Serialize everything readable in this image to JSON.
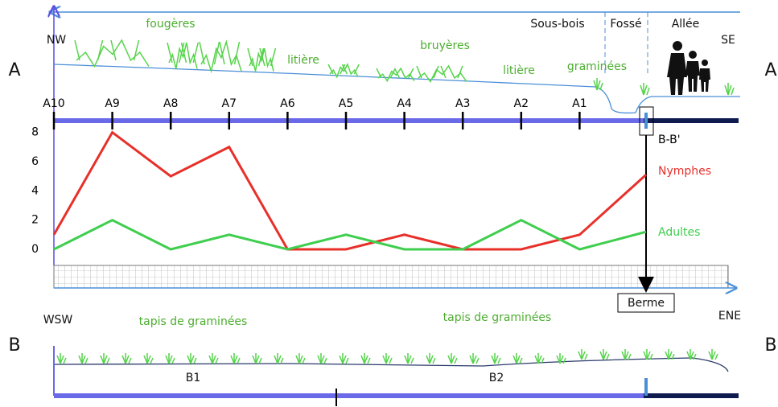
{
  "chart_data": {
    "type": "line",
    "categories": [
      "A10",
      "A9",
      "A8",
      "A7",
      "A6",
      "A5",
      "A4",
      "A3",
      "A2",
      "A1",
      "B-B'"
    ],
    "series": [
      {
        "name": "Nymphes",
        "color": "#e8302a",
        "values": [
          1,
          8,
          5,
          7,
          0,
          0,
          1,
          0,
          0,
          1,
          5.1
        ]
      },
      {
        "name": "Adultes",
        "color": "#3fce4e",
        "values": [
          0,
          2,
          0,
          1,
          0,
          1,
          0,
          0,
          2,
          0,
          1.2
        ]
      }
    ],
    "ylim": [
      -1.1,
      8.8
    ],
    "yticks": [
      0,
      2,
      4,
      6,
      8
    ],
    "annotations": [
      "fougères",
      "litière",
      "bruyères",
      "litière",
      "graminées",
      "Sous-bois",
      "Fossé",
      "Allée",
      "NW",
      "SE",
      "A",
      "A",
      "B",
      "B",
      "WSW",
      "ENE",
      "tapis de graminées",
      "tapis de graminées",
      "B1",
      "B2",
      "Berme"
    ]
  }
}
